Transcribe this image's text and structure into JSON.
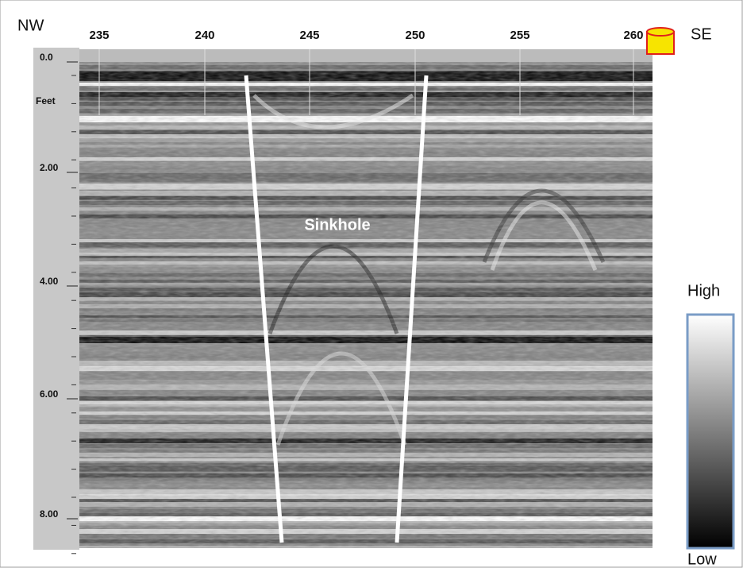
{
  "labels": {
    "left_direction": "NW",
    "right_direction": "SE",
    "depth_unit": "Feet",
    "feature": "Sinkhole",
    "scale_high": "High",
    "scale_low": "Low"
  },
  "distance_ticks": [
    "235",
    "240",
    "245",
    "250",
    "255",
    "260"
  ],
  "depth_ticks": [
    "0.0",
    "2.00",
    "4.00",
    "6.00",
    "8.00"
  ]
}
